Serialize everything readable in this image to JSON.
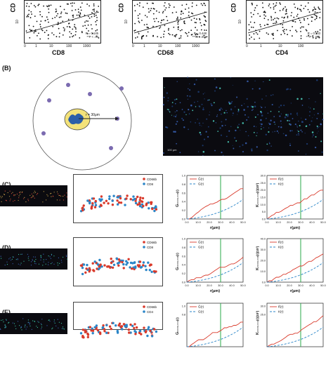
{
  "top_row": {
    "plots": [
      {
        "xlabel": "CD8",
        "ylabel": "CD",
        "stat_r": "R = 0.145",
        "stat_p": "**P < .00",
        "xticks": [
          "0",
          "1",
          "10",
          "100",
          "1000"
        ]
      },
      {
        "xlabel": "CD68",
        "ylabel": "CD",
        "stat_r": "R = 0.448",
        "stat_p": "***P < .001",
        "xticks": [
          "0",
          "1",
          "10",
          "100",
          "1000"
        ]
      },
      {
        "xlabel": "CD4",
        "ylabel": "CD",
        "stat_r": "R = 0.153",
        "stat_p": "***P < .001",
        "xticks": [
          "0",
          "1",
          "10",
          "100"
        ]
      }
    ],
    "ytick_10": "10"
  },
  "panel_b": {
    "label": "(B)",
    "radius_text": "r = 30μm",
    "scale_text": "100 μm"
  },
  "rows": [
    {
      "label": "(C)",
      "legend": [
        "CD66b",
        "CD8"
      ],
      "g_ylabel": "G",
      "g_ysub": "CD66b,CD8",
      "g_yparen": "(r)",
      "k_ylabel": "K",
      "k_ysub": "CD66b,CD8",
      "k_yparen": "(r)(10³)",
      "g_legend": [
        "Ĝ",
        "G"
      ],
      "k_legend": [
        "K̂",
        "K"
      ],
      "g_yticks": [
        "0.0",
        "0.2",
        "0.4",
        "0.6",
        "0.8",
        "1.0"
      ],
      "k_yticks": [
        "0.0",
        "5.0",
        "10.0",
        "15.0",
        "20.0",
        "25.0",
        "30.0"
      ],
      "xticks": [
        "0.0",
        "10.0",
        "20.0",
        "30.0",
        "40.0",
        "50.0"
      ],
      "xlabel": "r(μm)"
    },
    {
      "label": "(D)",
      "legend": [
        "CD66b",
        "CD8"
      ],
      "g_ylabel": "G",
      "g_ysub": "CD66b,CD8",
      "g_yparen": "(r)",
      "k_ylabel": "K",
      "k_ysub": "CD66b,CD8",
      "k_yparen": "(r)(10³)",
      "g_legend": [
        "Ĝ",
        "G"
      ],
      "k_legend": [
        "K̂",
        "K"
      ],
      "g_yticks": [
        "0.0",
        "0.2",
        "0.4",
        "0.6",
        "0.8",
        "1.0"
      ],
      "k_yticks": [
        "0.0",
        "10.0",
        "20.0",
        "30.0",
        "40.0"
      ],
      "xticks": [
        "0.0",
        "10.0",
        "20.0",
        "30.0",
        "40.0",
        "50.0"
      ],
      "xlabel": "r(μm)"
    },
    {
      "label": "(E)",
      "legend": [
        "CD66b",
        "CD4"
      ],
      "g_ylabel": "G",
      "g_ysub": "CD66b,CD4",
      "g_yparen": "(r)",
      "k_ylabel": "K",
      "k_ysub": "CD66b,CD4",
      "k_yparen": "(r)(10³)",
      "g_legend": [
        "Ĝ",
        "G"
      ],
      "k_legend": [
        "K̂",
        "K"
      ],
      "g_yticks": [
        "1.0",
        "0.8"
      ],
      "k_yticks": [
        "30.0",
        "25.0"
      ],
      "xticks": [],
      "xlabel": ""
    }
  ],
  "colors": {
    "red": "#d93a2b",
    "blue": "#2b86c8",
    "green": "#2aa84a",
    "purple": "#7b6bb0",
    "yellow": "#f3e27a"
  }
}
